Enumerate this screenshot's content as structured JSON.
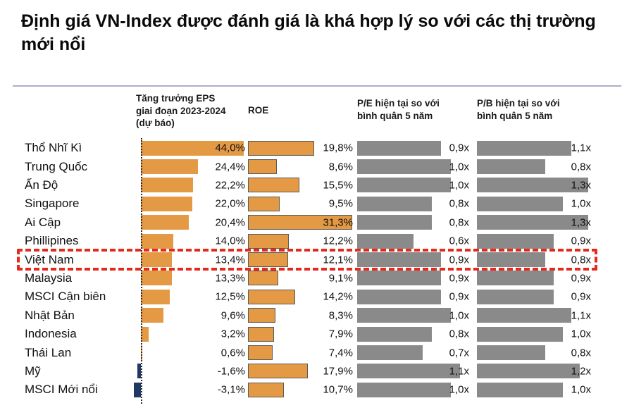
{
  "title": "Định giá VN-Index được đánh giá là khá hợp lý so với các thị trường mới nổi",
  "colors": {
    "bar_orange": "#E49A44",
    "bar_navy_negative": "#1F3864",
    "bar_gray": "#8A8A8A",
    "roe_bar_border": "#595959",
    "highlight_red": "#E5291D",
    "title_divider": "#ADAEC6",
    "text": "#111111"
  },
  "chart_data": {
    "type": "bar",
    "orientation": "horizontal",
    "grid": false,
    "legend": "none",
    "highlight_category": "Việt Nam",
    "categories": [
      "Thổ Nhĩ Kì",
      "Trung Quốc",
      "Ấn Độ",
      "Singapore",
      "Ai Cập",
      "Phillipines",
      "Việt Nam",
      "Malaysia",
      "MSCI Cận biên",
      "Nhật Bản",
      "Indonesia",
      "Thái Lan",
      "Mỹ",
      "MSCI Mới nổi"
    ],
    "series": [
      {
        "key": "eps",
        "name": "Tăng trưởng EPS giai đoạn 2023-2024 (dự báo)",
        "unit": "%",
        "color": "#E49A44",
        "negative_color": "#1F3864",
        "values": [
          44.0,
          24.4,
          22.2,
          22.0,
          20.4,
          14.0,
          13.4,
          13.3,
          12.5,
          9.6,
          3.2,
          0.6,
          -1.6,
          -3.1
        ],
        "labels": [
          "44,0%",
          "24,4%",
          "22,2%",
          "22,0%",
          "20,4%",
          "14,0%",
          "13,4%",
          "13,3%",
          "12,5%",
          "9,6%",
          "3,2%",
          "0,6%",
          "-1,6%",
          "-3,1%"
        ]
      },
      {
        "key": "roe",
        "name": "ROE",
        "unit": "%",
        "color": "#E49A44",
        "border": "#595959",
        "values": [
          19.8,
          8.6,
          15.5,
          9.5,
          31.3,
          12.2,
          12.1,
          9.1,
          14.2,
          8.3,
          7.9,
          7.4,
          17.9,
          10.7
        ],
        "labels": [
          "19,8%",
          "8,6%",
          "15,5%",
          "9,5%",
          "31,3%",
          "12,2%",
          "12,1%",
          "9,1%",
          "14,2%",
          "8,3%",
          "7,9%",
          "7,4%",
          "17,9%",
          "10,7%"
        ]
      },
      {
        "key": "pe",
        "name": "P/E hiện tại so với bình quân 5 năm",
        "unit": "x",
        "color": "#8A8A8A",
        "values": [
          0.9,
          1.0,
          1.0,
          0.8,
          0.8,
          0.6,
          0.9,
          0.9,
          0.9,
          1.0,
          0.8,
          0.7,
          1.1,
          1.0
        ],
        "labels": [
          "0,9x",
          "1,0x",
          "1,0x",
          "0,8x",
          "0,8x",
          "0,6x",
          "0,9x",
          "0,9x",
          "0,9x",
          "1,0x",
          "0,8x",
          "0,7x",
          "1,1x",
          "1,0x"
        ]
      },
      {
        "key": "pb",
        "name": "P/B hiện tại so với bình quân 5 năm",
        "unit": "x",
        "color": "#8A8A8A",
        "values": [
          1.1,
          0.8,
          1.3,
          1.0,
          1.3,
          0.9,
          0.8,
          0.9,
          0.9,
          1.1,
          1.0,
          0.8,
          1.2,
          1.0
        ],
        "labels": [
          "1,1x",
          "0,8x",
          "1,3x",
          "1,0x",
          "1,3x",
          "0,9x",
          "0,8x",
          "0,9x",
          "0,9x",
          "1,1x",
          "1,0x",
          "0,8x",
          "1,2x",
          "1,0x"
        ]
      }
    ]
  }
}
